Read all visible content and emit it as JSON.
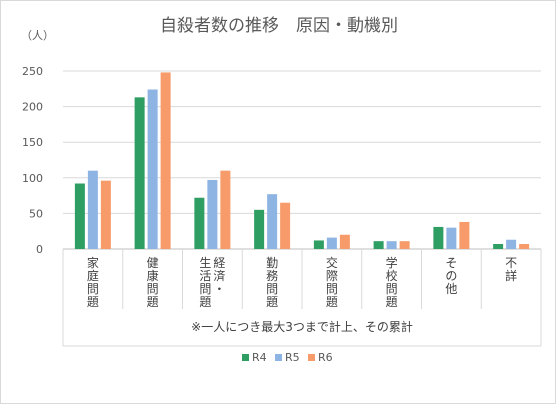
{
  "chart_data": {
    "type": "bar",
    "title": "自殺者数の推移　原因・動機別",
    "ylabel": "（人）",
    "ylim": [
      0,
      250
    ],
    "yticks": [
      "0",
      "50",
      "100",
      "150",
      "200",
      "250"
    ],
    "grid": true,
    "legend_position": "bottom",
    "categories": [
      "家庭問題",
      "健康問題",
      "経済・生活問題",
      "勤務問題",
      "交際問題",
      "学校問題",
      "その他",
      "不詳"
    ],
    "note": "※一人につき最大3つまで計上、その累計",
    "series": [
      {
        "name": "R4",
        "color": "#2e9e63",
        "values": [
          92,
          213,
          72,
          55,
          12,
          11,
          31,
          7
        ]
      },
      {
        "name": "R5",
        "color": "#8eb4e3",
        "values": [
          110,
          224,
          97,
          77,
          16,
          11,
          30,
          13
        ]
      },
      {
        "name": "R6",
        "color": "#f79b6b",
        "values": [
          96,
          248,
          110,
          65,
          20,
          11,
          38,
          7
        ]
      }
    ]
  }
}
